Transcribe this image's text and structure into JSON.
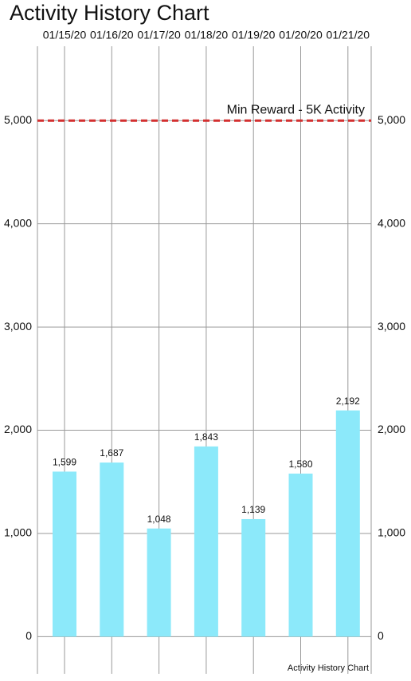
{
  "chart_data": {
    "type": "bar",
    "title": "Activity History Chart",
    "description": "Activity History Chart",
    "categories": [
      "01/15/20",
      "01/16/20",
      "01/17/20",
      "01/18/20",
      "01/19/20",
      "01/20/20",
      "01/21/20"
    ],
    "values": [
      1599,
      1687,
      1048,
      1843,
      1139,
      1580,
      2192
    ],
    "value_labels": [
      "1,599",
      "1,687",
      "1,048",
      "1,843",
      "1,139",
      "1,580",
      "2,192"
    ],
    "color": "#8ce9fa",
    "ylim": [
      -360,
      5720
    ],
    "yticks": [
      0,
      {
        "value": 1000,
        "label": "1,000"
      },
      {
        "value": 2000,
        "label": "2,000"
      },
      {
        "value": 3000,
        "label": "3,000"
      },
      {
        "value": 4000,
        "label": "4,000"
      },
      {
        "value": 5000,
        "label": "5,000"
      }
    ],
    "limit_line": {
      "value": 5000,
      "label": "Min Reward - 5K Activity",
      "color": "#d32f2f"
    },
    "grid": true
  }
}
